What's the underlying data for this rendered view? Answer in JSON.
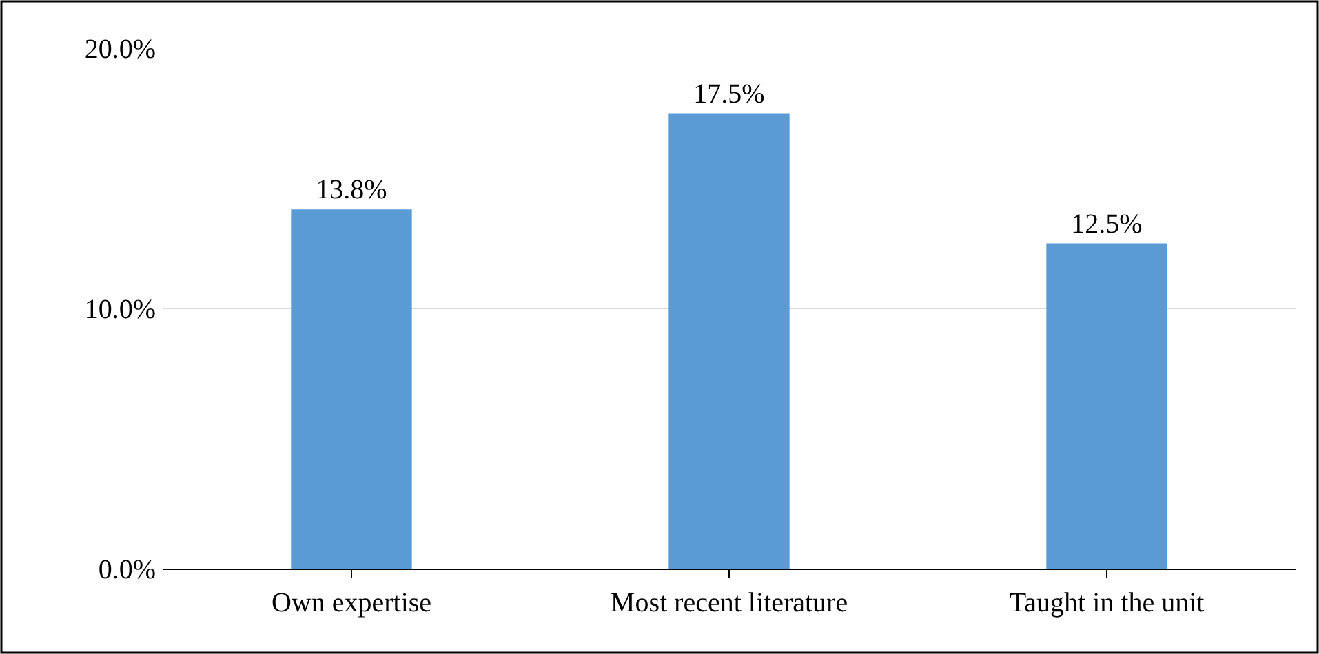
{
  "chart_data": {
    "type": "bar",
    "categories": [
      "Own expertise",
      "Most recent literature",
      "Taught in the unit"
    ],
    "values": [
      13.8,
      17.5,
      12.5
    ],
    "value_labels": [
      "13.8%",
      "17.5%",
      "12.5%"
    ],
    "color": "#5b9bd5",
    "ylim": [
      0,
      20
    ],
    "yticks": [
      {
        "value": 0,
        "label": "0.0%"
      },
      {
        "value": 10,
        "label": "10.0%"
      },
      {
        "value": 20,
        "label": "20.0%"
      }
    ],
    "grid": "y"
  }
}
